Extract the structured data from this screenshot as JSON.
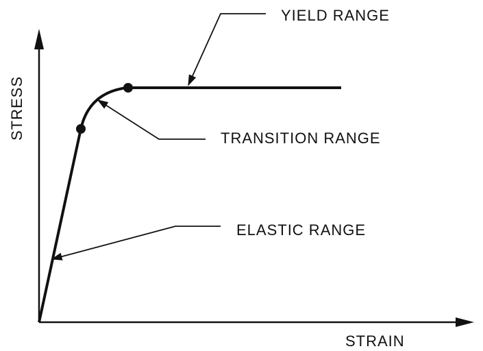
{
  "y_axis_label": "STRESS",
  "x_axis_label": "STRAIN",
  "annotations": [
    "YIELD RANGE",
    "TRANSITION RANGE",
    "ELASTIC RANGE"
  ]
}
